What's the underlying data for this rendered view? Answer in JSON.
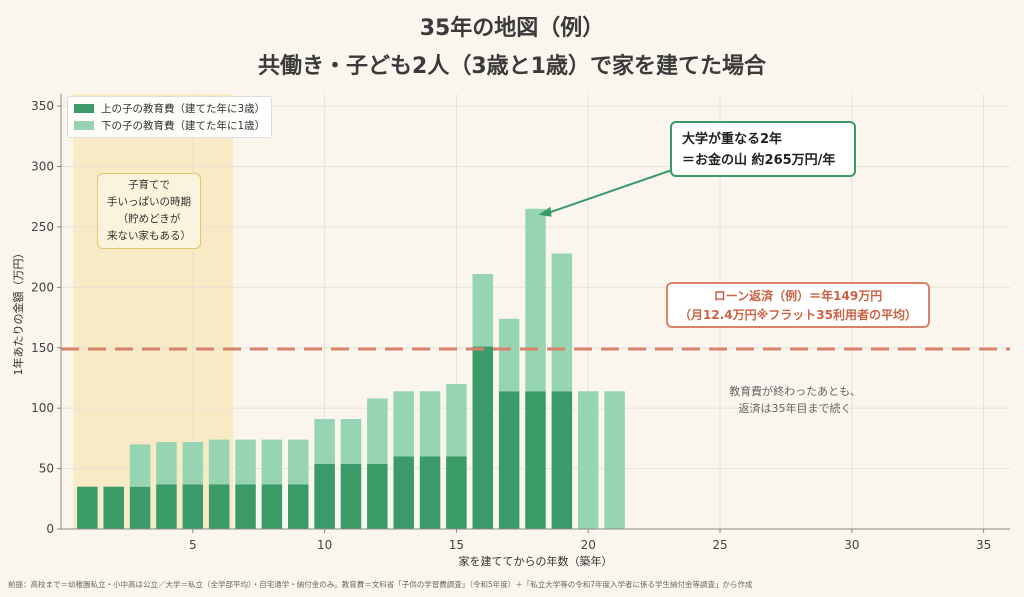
{
  "title_line1": "35年の地図（例）",
  "title_line2": "共働き・子ども2人（3歳と1歳）で家を建てた場合",
  "legend": {
    "older": "上の子の教育費（建てた年に3歳）",
    "younger": "下の子の教育費（建てた年に1歳）"
  },
  "annotations": {
    "child_box": [
      "子育てで",
      "手いっぱいの時期",
      "（貯めどきが",
      "来ない家もある）"
    ],
    "peak_box": [
      "大学が重なる2年",
      "＝お金の山 約265万円/年"
    ],
    "loan_box": [
      "ローン返済（例）＝年149万円",
      "（月12.4万円※フラット35利用者の平均）"
    ],
    "after_note": [
      "教育費が終わったあとも、",
      "返済は35年目まで続く"
    ]
  },
  "footnote": "前提：高校まで＝幼稚園私立・小中高は公立／大学＝私立（全学部平均）・自宅通学・納付金のみ。教育費＝文科省「子供の学習費調査」（令和5年度）＋「私立大学等の令和7年度入学者に係る学生納付金等調査」から作成",
  "colors": {
    "older": "#3a9a68",
    "younger": "#97d4b1",
    "loan_line": "#d9826a",
    "child_period": "#f6e7bc",
    "peak_arrow": "#3a9a66"
  },
  "chart_data": {
    "type": "bar",
    "stacked": true,
    "xlabel": "家を建ててからの年数（築年）",
    "ylabel": "1年あたりの金額（万円）",
    "xlim": [
      0,
      36
    ],
    "ylim": [
      0,
      360
    ],
    "xticks": [
      5,
      10,
      15,
      20,
      25,
      30,
      35
    ],
    "yticks": [
      0,
      50,
      100,
      150,
      200,
      250,
      300,
      350
    ],
    "x": [
      1,
      2,
      3,
      4,
      5,
      6,
      7,
      8,
      9,
      10,
      11,
      12,
      13,
      14,
      15,
      16,
      17,
      18,
      19,
      20,
      21
    ],
    "series": [
      {
        "name": "上の子の教育費（建てた年に3歳）",
        "values": [
          35,
          35,
          35,
          37,
          37,
          37,
          37,
          37,
          37,
          54,
          54,
          54,
          60,
          60,
          60,
          151,
          114,
          114,
          114,
          0,
          0
        ]
      },
      {
        "name": "下の子の教育費（建てた年に1歳）",
        "values": [
          0,
          0,
          35,
          35,
          35,
          37,
          37,
          37,
          37,
          37,
          37,
          54,
          54,
          54,
          60,
          60,
          60,
          151,
          114,
          114,
          114
        ]
      }
    ],
    "reference_line": {
      "y": 149
    },
    "highlight_span": [
      1,
      6
    ],
    "peak": {
      "x": 18,
      "y": 265
    },
    "grid": true,
    "legend_position": "top-left"
  }
}
